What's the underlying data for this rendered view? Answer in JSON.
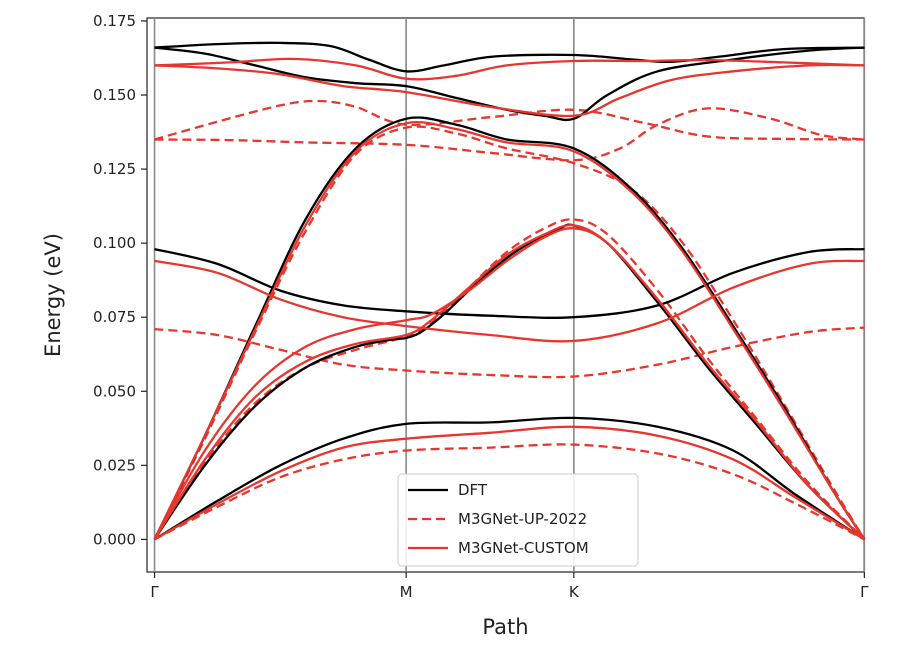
{
  "chart_data": {
    "type": "line",
    "title": "",
    "xlabel": "Path",
    "ylabel": "Energy (eV)",
    "x_ticks": [
      {
        "label": "Γ",
        "x": 0
      },
      {
        "label": "M",
        "x": 1
      },
      {
        "label": "K",
        "x": 1.6667
      },
      {
        "label": "Γ",
        "x": 2.8214
      }
    ],
    "xlim": [
      -0.03,
      2.82
    ],
    "ylim": [
      -0.011,
      0.176
    ],
    "y_ticks": [
      0.0,
      0.025,
      0.05,
      0.075,
      0.1,
      0.125,
      0.15,
      0.175
    ],
    "y_tick_labels": [
      "0.000",
      "0.025",
      "0.050",
      "0.075",
      "0.100",
      "0.125",
      "0.150",
      "0.175"
    ],
    "grid": "vertical lines at high-symmetry points",
    "legend": {
      "placement": "lower-center",
      "entries": [
        {
          "label": "DFT",
          "color": "#000000",
          "style": "solid"
        },
        {
          "label": "M3GNet-UP-2022",
          "color": "#e8362e",
          "style": "dashed"
        },
        {
          "label": "M3GNet-CUSTOM",
          "color": "#e8362e",
          "style": "solid"
        }
      ]
    },
    "series": [
      {
        "group": "DFT",
        "color": "#000000",
        "style": "solid",
        "points": [
          [
            0,
            0
          ],
          [
            0.25,
            0.013
          ],
          [
            0.5,
            0.025
          ],
          [
            0.75,
            0.034
          ],
          [
            1.0,
            0.039
          ],
          [
            1.3333,
            0.0395
          ],
          [
            1.6667,
            0.041
          ],
          [
            2.0,
            0.038
          ],
          [
            2.3,
            0.03
          ],
          [
            2.55,
            0.015
          ],
          [
            2.8214,
            0
          ]
        ]
      },
      {
        "group": "DFT",
        "color": "#000000",
        "style": "solid",
        "points": [
          [
            0,
            0
          ],
          [
            0.2,
            0.025
          ],
          [
            0.4,
            0.045
          ],
          [
            0.6,
            0.058
          ],
          [
            0.8,
            0.065
          ],
          [
            0.95,
            0.0675
          ],
          [
            1.0,
            0.068
          ],
          [
            1.06,
            0.07
          ],
          [
            1.15,
            0.076
          ],
          [
            1.3,
            0.088
          ],
          [
            1.45,
            0.098
          ],
          [
            1.6,
            0.1045
          ],
          [
            1.6667,
            0.106
          ],
          [
            1.8,
            0.1
          ],
          [
            2.0,
            0.08
          ],
          [
            2.2,
            0.058
          ],
          [
            2.4,
            0.038
          ],
          [
            2.6,
            0.018
          ],
          [
            2.8214,
            0
          ]
        ]
      },
      {
        "group": "DFT",
        "color": "#000000",
        "style": "solid",
        "points": [
          [
            0,
            0
          ],
          [
            0.2,
            0.035
          ],
          [
            0.4,
            0.072
          ],
          [
            0.6,
            0.108
          ],
          [
            0.8,
            0.132
          ],
          [
            1.0,
            0.142
          ],
          [
            1.2,
            0.14
          ],
          [
            1.4,
            0.135
          ],
          [
            1.6667,
            0.132
          ],
          [
            1.9,
            0.118
          ],
          [
            2.1,
            0.098
          ],
          [
            2.3,
            0.072
          ],
          [
            2.5,
            0.045
          ],
          [
            2.7,
            0.016
          ],
          [
            2.8214,
            0
          ]
        ]
      },
      {
        "group": "DFT",
        "color": "#000000",
        "style": "solid",
        "points": [
          [
            0,
            0.098
          ],
          [
            0.25,
            0.093
          ],
          [
            0.5,
            0.084
          ],
          [
            0.75,
            0.079
          ],
          [
            1.0,
            0.077
          ],
          [
            1.3333,
            0.0755
          ],
          [
            1.6667,
            0.075
          ],
          [
            2.0,
            0.079
          ],
          [
            2.3,
            0.09
          ],
          [
            2.6,
            0.097
          ],
          [
            2.8214,
            0.098
          ]
        ]
      },
      {
        "group": "DFT",
        "color": "#000000",
        "style": "solid",
        "points": [
          [
            0,
            0.166
          ],
          [
            0.2,
            0.164
          ],
          [
            0.4,
            0.16
          ],
          [
            0.6,
            0.156
          ],
          [
            0.8,
            0.154
          ],
          [
            1.0,
            0.153
          ],
          [
            1.2,
            0.149
          ],
          [
            1.4,
            0.145
          ],
          [
            1.55,
            0.143
          ],
          [
            1.6667,
            0.142
          ],
          [
            1.8,
            0.15
          ],
          [
            2.0,
            0.158
          ],
          [
            2.3,
            0.162
          ],
          [
            2.6,
            0.165
          ],
          [
            2.8214,
            0.166
          ]
        ]
      },
      {
        "group": "DFT",
        "color": "#000000",
        "style": "solid",
        "points": [
          [
            0,
            0.166
          ],
          [
            0.25,
            0.1672
          ],
          [
            0.5,
            0.1676
          ],
          [
            0.7,
            0.1665
          ],
          [
            0.85,
            0.162
          ],
          [
            1.0,
            0.158
          ],
          [
            1.15,
            0.16
          ],
          [
            1.35,
            0.163
          ],
          [
            1.6667,
            0.1635
          ],
          [
            1.9,
            0.162
          ],
          [
            2.05,
            0.1612
          ],
          [
            2.25,
            0.163
          ],
          [
            2.5,
            0.1655
          ],
          [
            2.8214,
            0.166
          ]
        ]
      },
      {
        "group": "M3GNet-UP-2022",
        "color": "#e8362e",
        "style": "dashed",
        "points": [
          [
            0,
            0
          ],
          [
            0.25,
            0.011
          ],
          [
            0.5,
            0.021
          ],
          [
            0.75,
            0.027
          ],
          [
            1.0,
            0.03
          ],
          [
            1.3333,
            0.031
          ],
          [
            1.6667,
            0.032
          ],
          [
            2.0,
            0.029
          ],
          [
            2.3,
            0.022
          ],
          [
            2.55,
            0.012
          ],
          [
            2.8214,
            0
          ]
        ]
      },
      {
        "group": "M3GNet-UP-2022",
        "color": "#e8362e",
        "style": "dashed",
        "points": [
          [
            0,
            0.071
          ],
          [
            0.25,
            0.069
          ],
          [
            0.5,
            0.064
          ],
          [
            0.75,
            0.059
          ],
          [
            1.0,
            0.057
          ],
          [
            1.3333,
            0.0555
          ],
          [
            1.6667,
            0.055
          ],
          [
            2.0,
            0.059
          ],
          [
            2.3,
            0.065
          ],
          [
            2.6,
            0.07
          ],
          [
            2.8214,
            0.0715
          ]
        ]
      },
      {
        "group": "M3GNet-UP-2022",
        "color": "#e8362e",
        "style": "dashed",
        "points": [
          [
            0,
            0
          ],
          [
            0.2,
            0.026
          ],
          [
            0.4,
            0.046
          ],
          [
            0.6,
            0.058
          ],
          [
            0.8,
            0.064
          ],
          [
            1.0,
            0.0685
          ],
          [
            1.1,
            0.073
          ],
          [
            1.25,
            0.085
          ],
          [
            1.4,
            0.097
          ],
          [
            1.55,
            0.105
          ],
          [
            1.6667,
            0.108
          ],
          [
            1.8,
            0.103
          ],
          [
            2.0,
            0.084
          ],
          [
            2.2,
            0.061
          ],
          [
            2.4,
            0.04
          ],
          [
            2.6,
            0.019
          ],
          [
            2.8214,
            0
          ]
        ]
      },
      {
        "group": "M3GNet-UP-2022",
        "color": "#e8362e",
        "style": "dashed",
        "points": [
          [
            0,
            0
          ],
          [
            0.2,
            0.034
          ],
          [
            0.4,
            0.07
          ],
          [
            0.6,
            0.104
          ],
          [
            0.8,
            0.13
          ],
          [
            1.0,
            0.139
          ],
          [
            1.2,
            0.137
          ],
          [
            1.4,
            0.132
          ],
          [
            1.6667,
            0.127
          ],
          [
            1.9,
            0.118
          ],
          [
            2.1,
            0.1
          ],
          [
            2.3,
            0.074
          ],
          [
            2.5,
            0.046
          ],
          [
            2.7,
            0.017
          ],
          [
            2.8214,
            0
          ]
        ]
      },
      {
        "group": "M3GNet-UP-2022",
        "color": "#e8362e",
        "style": "dashed",
        "points": [
          [
            0,
            0.135
          ],
          [
            0.3,
            0.1348
          ],
          [
            0.6,
            0.134
          ],
          [
            1.0,
            0.1332
          ],
          [
            1.3333,
            0.1305
          ],
          [
            1.6667,
            0.128
          ],
          [
            1.85,
            0.132
          ],
          [
            2.0,
            0.14
          ],
          [
            2.2,
            0.1455
          ],
          [
            2.45,
            0.142
          ],
          [
            2.65,
            0.1365
          ],
          [
            2.8214,
            0.135
          ]
        ]
      },
      {
        "group": "M3GNet-UP-2022",
        "color": "#e8362e",
        "style": "dashed",
        "points": [
          [
            0,
            0.135
          ],
          [
            0.25,
            0.141
          ],
          [
            0.5,
            0.1465
          ],
          [
            0.65,
            0.148
          ],
          [
            0.8,
            0.146
          ],
          [
            1.0,
            0.14
          ],
          [
            1.3333,
            0.1425
          ],
          [
            1.6667,
            0.145
          ],
          [
            1.95,
            0.1405
          ],
          [
            2.2,
            0.136
          ],
          [
            2.5,
            0.1352
          ],
          [
            2.8214,
            0.135
          ]
        ]
      },
      {
        "group": "M3GNet-CUSTOM",
        "color": "#e8362e",
        "style": "solid",
        "points": [
          [
            0,
            0
          ],
          [
            0.25,
            0.012
          ],
          [
            0.5,
            0.023
          ],
          [
            0.75,
            0.031
          ],
          [
            1.0,
            0.034
          ],
          [
            1.3333,
            0.036
          ],
          [
            1.6667,
            0.038
          ],
          [
            2.0,
            0.035
          ],
          [
            2.3,
            0.027
          ],
          [
            2.55,
            0.014
          ],
          [
            2.8214,
            0
          ]
        ]
      },
      {
        "group": "M3GNet-CUSTOM",
        "color": "#e8362e",
        "style": "solid",
        "points": [
          [
            0,
            0.094
          ],
          [
            0.25,
            0.09
          ],
          [
            0.5,
            0.081
          ],
          [
            0.75,
            0.075
          ],
          [
            1.0,
            0.072
          ],
          [
            1.3333,
            0.069
          ],
          [
            1.6667,
            0.067
          ],
          [
            2.0,
            0.073
          ],
          [
            2.3,
            0.085
          ],
          [
            2.6,
            0.093
          ],
          [
            2.8214,
            0.094
          ]
        ]
      },
      {
        "group": "M3GNet-CUSTOM",
        "color": "#e8362e",
        "style": "solid",
        "points": [
          [
            0,
            0
          ],
          [
            0.2,
            0.027
          ],
          [
            0.4,
            0.048
          ],
          [
            0.6,
            0.06
          ],
          [
            0.8,
            0.066
          ],
          [
            1.0,
            0.069
          ],
          [
            1.1,
            0.074
          ],
          [
            1.25,
            0.085
          ],
          [
            1.4,
            0.096
          ],
          [
            1.55,
            0.103
          ],
          [
            1.6667,
            0.106
          ],
          [
            1.8,
            0.1
          ],
          [
            2.0,
            0.081
          ],
          [
            2.2,
            0.059
          ],
          [
            2.4,
            0.039
          ],
          [
            2.6,
            0.018
          ],
          [
            2.8214,
            0
          ]
        ]
      },
      {
        "group": "M3GNet-CUSTOM",
        "color": "#e8362e",
        "style": "solid",
        "points": [
          [
            0,
            0
          ],
          [
            0.2,
            0.03
          ],
          [
            0.4,
            0.052
          ],
          [
            0.6,
            0.065
          ],
          [
            0.8,
            0.071
          ],
          [
            1.0,
            0.074
          ],
          [
            1.1,
            0.076
          ],
          [
            1.25,
            0.084
          ],
          [
            1.4,
            0.094
          ],
          [
            1.55,
            0.102
          ],
          [
            1.6667,
            0.105
          ],
          [
            1.8,
            0.1
          ],
          [
            2.0,
            0.081
          ],
          [
            2.2,
            0.059
          ],
          [
            2.4,
            0.039
          ],
          [
            2.6,
            0.018
          ],
          [
            2.8214,
            0
          ]
        ]
      },
      {
        "group": "M3GNet-CUSTOM",
        "color": "#e8362e",
        "style": "solid",
        "points": [
          [
            0,
            0
          ],
          [
            0.2,
            0.035
          ],
          [
            0.4,
            0.071
          ],
          [
            0.6,
            0.106
          ],
          [
            0.8,
            0.131
          ],
          [
            1.0,
            0.1405
          ],
          [
            1.2,
            0.1385
          ],
          [
            1.4,
            0.134
          ],
          [
            1.6667,
            0.131
          ],
          [
            1.9,
            0.117
          ],
          [
            2.1,
            0.097
          ],
          [
            2.3,
            0.071
          ],
          [
            2.5,
            0.044
          ],
          [
            2.7,
            0.016
          ],
          [
            2.8214,
            0
          ]
        ]
      },
      {
        "group": "M3GNet-CUSTOM",
        "color": "#e8362e",
        "style": "solid",
        "points": [
          [
            0,
            0.16
          ],
          [
            0.25,
            0.159
          ],
          [
            0.5,
            0.157
          ],
          [
            0.75,
            0.153
          ],
          [
            1.0,
            0.151
          ],
          [
            1.3333,
            0.146
          ],
          [
            1.6667,
            0.143
          ],
          [
            1.85,
            0.149
          ],
          [
            2.05,
            0.155
          ],
          [
            2.3,
            0.158
          ],
          [
            2.6,
            0.16
          ],
          [
            2.8214,
            0.16
          ]
        ]
      },
      {
        "group": "M3GNet-CUSTOM",
        "color": "#e8362e",
        "style": "solid",
        "points": [
          [
            0,
            0.16
          ],
          [
            0.3,
            0.161
          ],
          [
            0.55,
            0.1622
          ],
          [
            0.8,
            0.16
          ],
          [
            1.0,
            0.1555
          ],
          [
            1.2,
            0.1565
          ],
          [
            1.4,
            0.16
          ],
          [
            1.6667,
            0.1615
          ],
          [
            1.95,
            0.1615
          ],
          [
            2.2,
            0.1618
          ],
          [
            2.5,
            0.161
          ],
          [
            2.8214,
            0.16
          ]
        ]
      }
    ]
  }
}
